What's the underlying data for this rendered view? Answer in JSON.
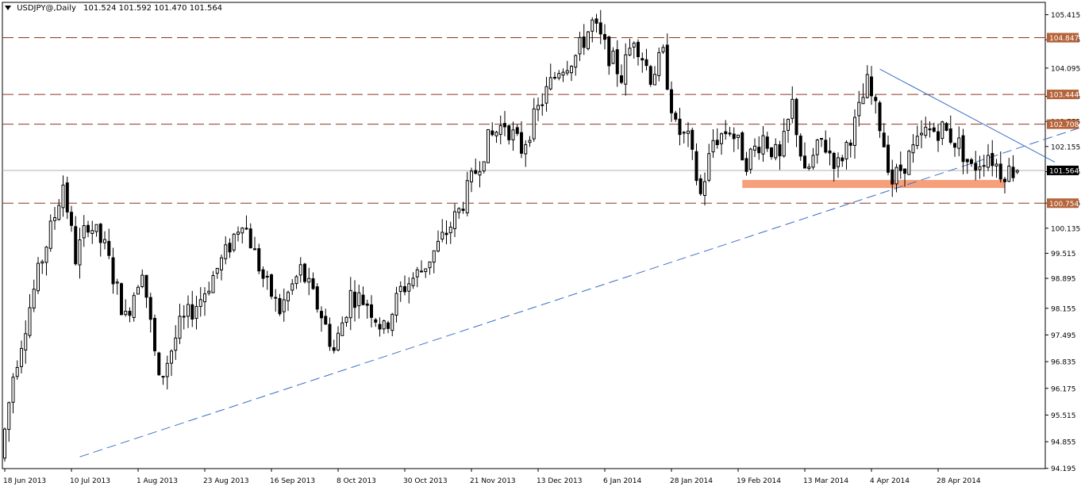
{
  "header": {
    "symbol": "USDJPY@,Daily",
    "ohlc": "101.524 101.592 101.470 101.564"
  },
  "colors": {
    "background": "#ffffff",
    "candle": "#000000",
    "level_line": "#8b3a22",
    "level_label_bg": "#b5633a",
    "level_label_text": "#ffffff",
    "support_zone": "#f5a07a",
    "trendline": "#3a6fc4",
    "current_price_line": "#b0b0b0",
    "current_price_label_bg": "#000000",
    "current_price_label_text": "#ffffff"
  },
  "chart_data": {
    "type": "candlestick",
    "instrument": "USDJPY@",
    "timeframe": "Daily",
    "last_bar": {
      "open": 101.524,
      "high": 101.592,
      "low": 101.47,
      "close": 101.564
    },
    "ylim": [
      94.19,
      105.72
    ],
    "y_ticks": [
      "105.415",
      "104.795",
      "104.095",
      "103.395",
      "102.775",
      "102.155",
      "101.535",
      "100.755",
      "100.135",
      "99.515",
      "98.895",
      "98.155",
      "97.495",
      "96.835",
      "96.175",
      "95.515",
      "94.855",
      "94.195"
    ],
    "x_ticks": [
      "18 Jun 2013",
      "10 Jul 2013",
      "1 Aug 2013",
      "23 Aug 2013",
      "16 Sep 2013",
      "8 Oct 2013",
      "30 Oct 2013",
      "21 Nov 2013",
      "13 Dec 2013",
      "6 Jan 2014",
      "28 Jan 2014",
      "19 Feb 2014",
      "13 Mar 2014",
      "4 Apr 2014",
      "28 Apr 2014"
    ],
    "horizontal_levels": [
      {
        "value": 104.847,
        "label": "104.847"
      },
      {
        "value": 103.444,
        "label": "103.444"
      },
      {
        "value": 102.708,
        "label": "102.708"
      },
      {
        "value": 100.754,
        "label": "100.754"
      }
    ],
    "current_price": {
      "value": 101.564,
      "label": "101.564"
    },
    "support_zone": {
      "from_bar": 177,
      "to_bar": 240,
      "low": 101.13,
      "high": 101.33
    },
    "trendlines": [
      {
        "style": "dashed",
        "from": {
          "bar": 18,
          "price": 94.48
        },
        "to": {
          "bar": 320,
          "price": 104.72
        }
      },
      {
        "style": "solid",
        "from": {
          "bar": 210,
          "price": 104.07
        },
        "to": {
          "bar": 252,
          "price": 101.77
        }
      }
    ],
    "price_anchors": [
      [
        0,
        94.45
      ],
      [
        3,
        96.5
      ],
      [
        7,
        98.2
      ],
      [
        10,
        99.4
      ],
      [
        13,
        100.45
      ],
      [
        15,
        101.25
      ],
      [
        18,
        99.4
      ],
      [
        21,
        100.3
      ],
      [
        25,
        99.65
      ],
      [
        30,
        97.9
      ],
      [
        34,
        99.2
      ],
      [
        38,
        96.3
      ],
      [
        43,
        97.7
      ],
      [
        48,
        98.4
      ],
      [
        54,
        99.5
      ],
      [
        58,
        100.4
      ],
      [
        63,
        98.9
      ],
      [
        67,
        98.1
      ],
      [
        72,
        99.1
      ],
      [
        77,
        98.0
      ],
      [
        80,
        97.1
      ],
      [
        84,
        98.5
      ],
      [
        88,
        98.3
      ],
      [
        92,
        97.6
      ],
      [
        96,
        98.6
      ],
      [
        101,
        99.1
      ],
      [
        105,
        99.7
      ],
      [
        110,
        100.55
      ],
      [
        113,
        101.3
      ],
      [
        117,
        102.3
      ],
      [
        121,
        102.75
      ],
      [
        125,
        102.1
      ],
      [
        130,
        103.3
      ],
      [
        134,
        104.1
      ],
      [
        138,
        104.4
      ],
      [
        142,
        105.2
      ],
      [
        145,
        104.6
      ],
      [
        149,
        103.9
      ],
      [
        152,
        104.9
      ],
      [
        156,
        103.9
      ],
      [
        159,
        104.4
      ],
      [
        162,
        102.6
      ],
      [
        165,
        102.3
      ],
      [
        168,
        100.95
      ],
      [
        171,
        102.3
      ],
      [
        175,
        102.6
      ],
      [
        179,
        101.8
      ],
      [
        183,
        102.4
      ],
      [
        187,
        101.8
      ],
      [
        190,
        103.2
      ],
      [
        193,
        101.4
      ],
      [
        197,
        102.3
      ],
      [
        201,
        101.7
      ],
      [
        205,
        102.7
      ],
      [
        208,
        103.7
      ],
      [
        211,
        102.7
      ],
      [
        214,
        101.3
      ],
      [
        218,
        101.9
      ],
      [
        222,
        102.5
      ],
      [
        226,
        102.6
      ],
      [
        230,
        102.2
      ],
      [
        233,
        101.6
      ],
      [
        237,
        102.0
      ],
      [
        240,
        101.55
      ],
      [
        243,
        101.56
      ]
    ],
    "bar_count": 244
  }
}
